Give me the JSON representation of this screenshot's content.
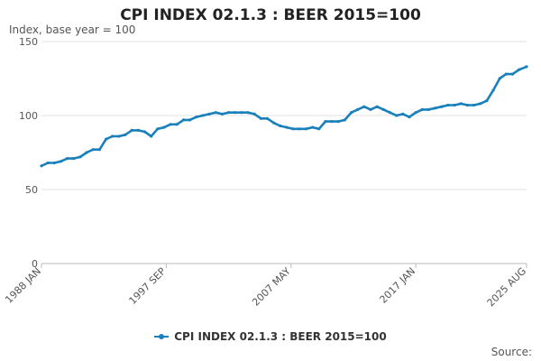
{
  "chart_data": {
    "type": "line",
    "title": "CPI INDEX 02.1.3 : BEER 2015=100",
    "ylabel": "Index, base year = 100",
    "ylim": [
      0,
      150
    ],
    "yticks": [
      0,
      50,
      100,
      150
    ],
    "x_tick_labels": [
      "1988 JAN",
      "1997 SEP",
      "2007 MAY",
      "2017 JAN",
      "2025 AUG"
    ],
    "x_tick_years": [
      1988.0,
      1997.667,
      2007.333,
      2017.0,
      2025.583
    ],
    "xlim": [
      1988.0,
      2025.583
    ],
    "grid": "horizontal",
    "legend_position": "bottom",
    "series": [
      {
        "name": "CPI INDEX 02.1.3 : BEER 2015=100",
        "color": "#1a80bb",
        "points": [
          [
            1988.0,
            66
          ],
          [
            1988.5,
            68
          ],
          [
            1989.0,
            68
          ],
          [
            1989.5,
            69
          ],
          [
            1990.0,
            71
          ],
          [
            1990.5,
            71
          ],
          [
            1991.0,
            72
          ],
          [
            1991.5,
            75
          ],
          [
            1992.0,
            77
          ],
          [
            1992.5,
            77
          ],
          [
            1993.0,
            84
          ],
          [
            1993.5,
            86
          ],
          [
            1994.0,
            86
          ],
          [
            1994.5,
            87
          ],
          [
            1995.0,
            90
          ],
          [
            1995.5,
            90
          ],
          [
            1996.0,
            89
          ],
          [
            1996.5,
            86
          ],
          [
            1997.0,
            91
          ],
          [
            1997.5,
            92
          ],
          [
            1998.0,
            94
          ],
          [
            1998.5,
            94
          ],
          [
            1999.0,
            97
          ],
          [
            1999.5,
            97
          ],
          [
            2000.0,
            99
          ],
          [
            2000.5,
            100
          ],
          [
            2001.0,
            101
          ],
          [
            2001.5,
            102
          ],
          [
            2002.0,
            101
          ],
          [
            2002.5,
            102
          ],
          [
            2003.0,
            102
          ],
          [
            2003.5,
            102
          ],
          [
            2004.0,
            102
          ],
          [
            2004.5,
            101
          ],
          [
            2005.0,
            98
          ],
          [
            2005.5,
            98
          ],
          [
            2006.0,
            95
          ],
          [
            2006.5,
            93
          ],
          [
            2007.0,
            92
          ],
          [
            2007.5,
            91
          ],
          [
            2008.0,
            91
          ],
          [
            2008.5,
            91
          ],
          [
            2009.0,
            92
          ],
          [
            2009.5,
            91
          ],
          [
            2010.0,
            96
          ],
          [
            2010.5,
            96
          ],
          [
            2011.0,
            96
          ],
          [
            2011.5,
            97
          ],
          [
            2012.0,
            102
          ],
          [
            2012.5,
            104
          ],
          [
            2013.0,
            106
          ],
          [
            2013.5,
            104
          ],
          [
            2014.0,
            106
          ],
          [
            2014.5,
            104
          ],
          [
            2015.0,
            102
          ],
          [
            2015.5,
            100
          ],
          [
            2016.0,
            101
          ],
          [
            2016.5,
            99
          ],
          [
            2017.0,
            102
          ],
          [
            2017.5,
            104
          ],
          [
            2018.0,
            104
          ],
          [
            2018.5,
            105
          ],
          [
            2019.0,
            106
          ],
          [
            2019.5,
            107
          ],
          [
            2020.0,
            107
          ],
          [
            2020.5,
            108
          ],
          [
            2021.0,
            107
          ],
          [
            2021.5,
            107
          ],
          [
            2022.0,
            108
          ],
          [
            2022.5,
            110
          ],
          [
            2023.0,
            117
          ],
          [
            2023.5,
            125
          ],
          [
            2024.0,
            128
          ],
          [
            2024.5,
            128
          ],
          [
            2025.0,
            131
          ],
          [
            2025.583,
            133
          ]
        ]
      }
    ]
  },
  "legend": {
    "label": "CPI INDEX 02.1.3 : BEER 2015=100"
  },
  "source": {
    "label": "Source:"
  }
}
